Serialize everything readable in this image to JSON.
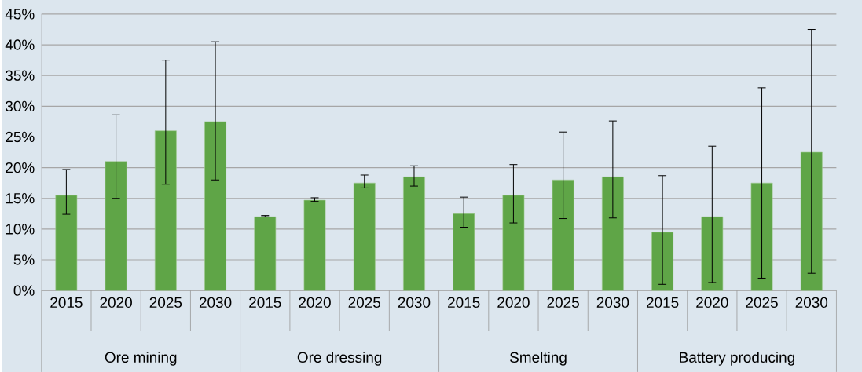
{
  "chart_data": {
    "type": "bar",
    "categories": [
      "2015",
      "2020",
      "2025",
      "2030",
      "2015",
      "2020",
      "2025",
      "2030",
      "2015",
      "2020",
      "2025",
      "2030",
      "2015",
      "2020",
      "2025",
      "2030"
    ],
    "values": [
      15.5,
      21,
      26,
      27.5,
      12,
      14.7,
      17.5,
      18.5,
      12.5,
      15.5,
      18,
      18.5,
      9.5,
      12,
      17.5,
      22.5
    ],
    "errors": [
      [
        12.4,
        19.7
      ],
      [
        15,
        28.6
      ],
      [
        17.3,
        37.5
      ],
      [
        18,
        40.5
      ],
      [
        12,
        12.2
      ],
      [
        14.5,
        15.1
      ],
      [
        16.7,
        18.8
      ],
      [
        17,
        20.3
      ],
      [
        10.3,
        15.2
      ],
      [
        11,
        20.5
      ],
      [
        11.7,
        25.8
      ],
      [
        11.8,
        27.6
      ],
      [
        1,
        18.7
      ],
      [
        1.3,
        23.5
      ],
      [
        2,
        33
      ],
      [
        2.8,
        42.5
      ]
    ],
    "color": "#5fa547",
    "annotations": [
      "Ore mining",
      "Ore dressing",
      "Smelting",
      "Battery producing"
    ],
    "ylim": [
      0,
      45
    ],
    "yticks": [
      {
        "value": 0,
        "label": "0%"
      },
      {
        "value": 5,
        "label": "5%"
      },
      {
        "value": 10,
        "label": "10%"
      },
      {
        "value": 15,
        "label": "15%"
      },
      {
        "value": 20,
        "label": "20%"
      },
      {
        "value": 25,
        "label": "25%"
      },
      {
        "value": 30,
        "label": "30%"
      },
      {
        "value": 35,
        "label": "35%"
      },
      {
        "value": 40,
        "label": "40%"
      },
      {
        "value": 45,
        "label": "45%"
      }
    ],
    "grid": "y"
  }
}
